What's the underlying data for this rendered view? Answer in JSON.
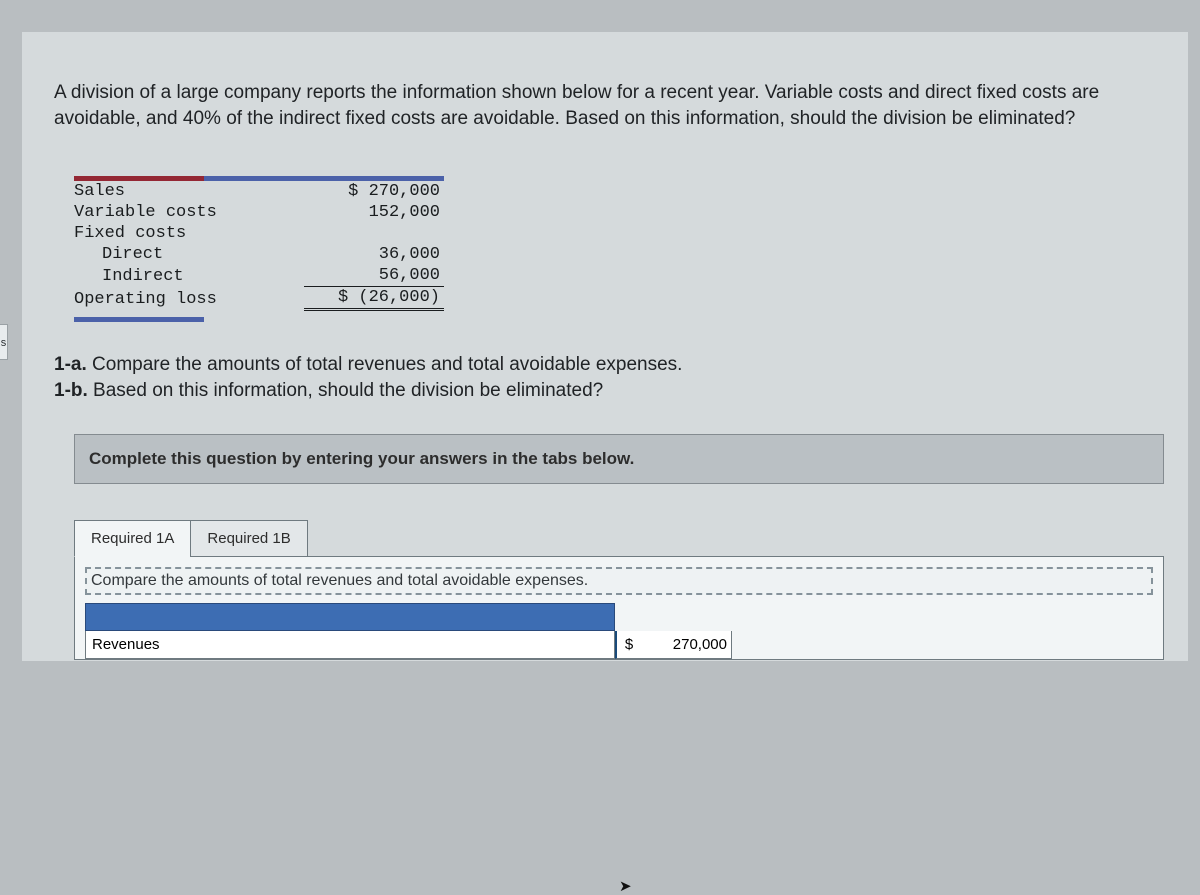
{
  "side_tab_label": "s",
  "question": "A division of a large company reports the information shown below for a recent year. Variable costs and direct fixed costs are avoidable, and 40% of the indirect fixed costs are avoidable. Based on this information, should the division be eliminated?",
  "fin": {
    "rows": [
      {
        "label": "Sales",
        "value": "$ 270,000",
        "indent": false,
        "rule": ""
      },
      {
        "label": "Variable costs",
        "value": "152,000",
        "indent": false,
        "rule": ""
      },
      {
        "label": "Fixed costs",
        "value": "",
        "indent": false,
        "rule": ""
      },
      {
        "label": "Direct",
        "value": "36,000",
        "indent": true,
        "rule": ""
      },
      {
        "label": "Indirect",
        "value": "56,000",
        "indent": true,
        "rule": "underline"
      },
      {
        "label": "Operating loss",
        "value": "$ (26,000)",
        "indent": false,
        "rule": "double"
      }
    ]
  },
  "subq": {
    "a_tag": "1-a.",
    "a_text": " Compare the amounts of total revenues and total avoidable expenses.",
    "b_tag": "1-b.",
    "b_text": " Based on this information, should the division be eliminated?"
  },
  "instruction": "Complete this question by entering your answers in the tabs below.",
  "tabs": {
    "a": "Required 1A",
    "b": "Required 1B"
  },
  "tab_instruction": "Compare the amounts of total revenues and total avoidable expenses.",
  "answer_row": {
    "label": "Revenues",
    "currency": "$",
    "value": "270,000"
  },
  "colors": {
    "page_bg": "#d5dadc",
    "outer_bg": "#b9bec1",
    "accent_blue": "#4b61a9",
    "accent_red": "#942734",
    "tab_header_blue": "#3d6db3"
  }
}
